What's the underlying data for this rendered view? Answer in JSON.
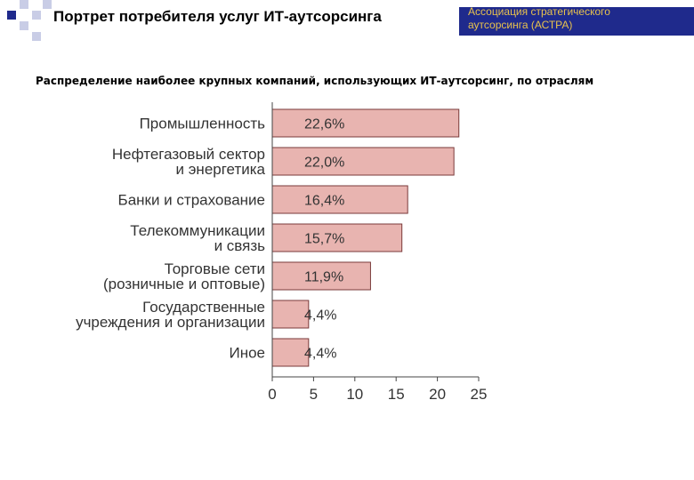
{
  "header": {
    "title": "Портрет потребителя услуг ИТ-аутсорсинга",
    "org_line1": "Ассоциация стратегического",
    "org_line2": "аутсорсинга (АСТРА)"
  },
  "colors": {
    "bar_fill": "#e8b4b0",
    "bar_stroke": "#7a3a3a",
    "accent": "#1f2a8c",
    "org_text": "#e8c24d"
  },
  "chart_data": {
    "type": "bar",
    "orientation": "horizontal",
    "title": "Распределение наиболее крупных компаний, использующих ИТ-аутсорсинг, по отраслям",
    "categories": [
      [
        "Промышленность"
      ],
      [
        "Нефтегазовый сектор",
        "и энергетика"
      ],
      [
        "Банки и страхование"
      ],
      [
        "Телекоммуникации",
        "и связь"
      ],
      [
        "Торговые сети",
        "(розничные и оптовые)"
      ],
      [
        "Государственные",
        "учреждения и организации"
      ],
      [
        "Иное"
      ]
    ],
    "values": [
      22.6,
      22.0,
      16.4,
      15.7,
      11.9,
      4.4,
      4.4
    ],
    "value_labels": [
      "22,6%",
      "22,0%",
      "16,4%",
      "15,7%",
      "11,9%",
      "4,4%",
      "4,4%"
    ],
    "xlim": [
      0,
      25
    ],
    "xticks": [
      "0",
      "5",
      "10",
      "15",
      "20",
      "25"
    ],
    "xlabel": "",
    "ylabel": "",
    "grid": false
  }
}
